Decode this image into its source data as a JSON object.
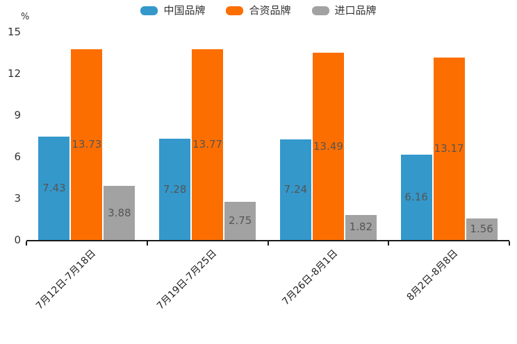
{
  "chart_data": {
    "type": "bar",
    "unit_label": "%",
    "categories": [
      "7月12日-7月18日",
      "7月19日-7月25日",
      "7月26日-8月1日",
      "8月2日-8月8日"
    ],
    "series": [
      {
        "name": "中国品牌",
        "color": "#3498CB",
        "values": [
          7.43,
          7.28,
          7.24,
          6.16
        ]
      },
      {
        "name": "合资品牌",
        "color": "#FD6E01",
        "values": [
          13.73,
          13.77,
          13.49,
          13.17
        ]
      },
      {
        "name": "进口品牌",
        "color": "#A2A2A2",
        "values": [
          3.88,
          2.75,
          1.82,
          1.56
        ]
      }
    ],
    "y_ticks": [
      0,
      3,
      6,
      9,
      12,
      15
    ],
    "ylim": [
      0,
      15
    ],
    "grid": false,
    "legend_position": "top",
    "value_labels": "inside-center",
    "axis_color": "#1a1a1a",
    "value_label_color": "#555555"
  }
}
